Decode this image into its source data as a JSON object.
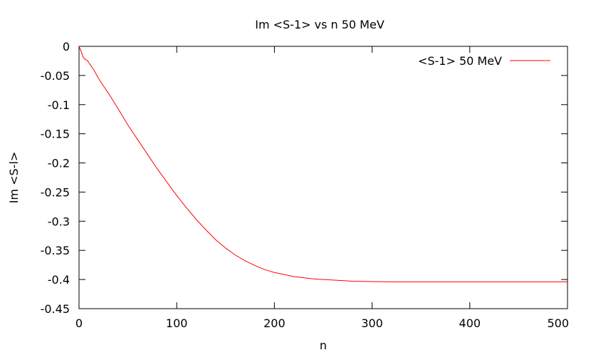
{
  "chart_data": {
    "type": "line",
    "title": "Im <S-1> vs n 50 MeV",
    "xlabel": "n",
    "ylabel": "Im <S-l>",
    "xlim": [
      0,
      500
    ],
    "ylim": [
      -0.45,
      0
    ],
    "xticks": [
      0,
      100,
      200,
      300,
      400,
      500
    ],
    "xtick_labels": [
      "0",
      "100",
      "200",
      "300",
      "400",
      "500"
    ],
    "yticks": [
      0,
      -0.05,
      -0.1,
      -0.15,
      -0.2,
      -0.25,
      -0.3,
      -0.35,
      -0.4,
      -0.45
    ],
    "ytick_labels": [
      "0",
      "-0.05",
      "-0.1",
      "-0.15",
      "-0.2",
      "-0.25",
      "-0.3",
      "-0.35",
      "-0.4",
      "-0.45"
    ],
    "grid": false,
    "legend_position": "top-right",
    "series": [
      {
        "name": "<S-1> 50 MeV",
        "color": "#ff0000",
        "x": [
          0,
          2,
          4,
          6,
          9,
          10,
          15,
          20,
          25,
          30,
          40,
          50,
          60,
          70,
          80,
          90,
          100,
          110,
          120,
          130,
          140,
          150,
          160,
          170,
          180,
          190,
          200,
          220,
          240,
          260,
          280,
          300,
          320,
          340,
          360,
          380,
          400,
          450,
          500
        ],
        "y": [
          0,
          -0.008,
          -0.018,
          -0.022,
          -0.025,
          -0.028,
          -0.04,
          -0.055,
          -0.068,
          -0.08,
          -0.107,
          -0.135,
          -0.16,
          -0.185,
          -0.21,
          -0.233,
          -0.256,
          -0.277,
          -0.297,
          -0.315,
          -0.332,
          -0.346,
          -0.358,
          -0.368,
          -0.376,
          -0.383,
          -0.388,
          -0.395,
          -0.399,
          -0.401,
          -0.403,
          -0.4035,
          -0.404,
          -0.404,
          -0.404,
          -0.404,
          -0.404,
          -0.404,
          -0.404
        ]
      }
    ]
  }
}
